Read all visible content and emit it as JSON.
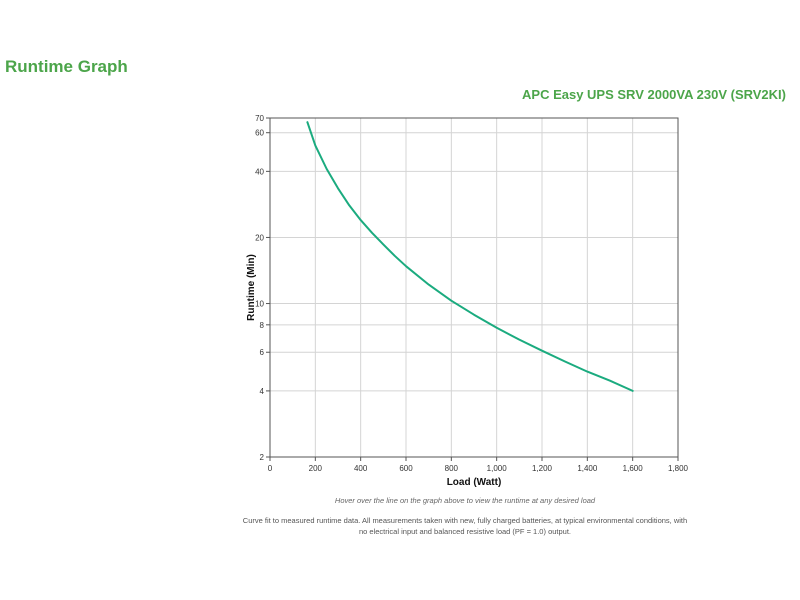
{
  "page": {
    "title": "Runtime Graph",
    "product": "APC Easy UPS SRV 2000VA 230V (SRV2KI)",
    "hint": "Hover over the line on the graph above to view the runtime at any desired load",
    "footnote": "Curve fit to measured runtime data. All measurements taken with new, fully charged batteries, at typical environmental conditions, with no electrical input and balanced resistive load (PF = 1.0) output."
  },
  "chart_data": {
    "type": "line",
    "title": "",
    "xlabel": "Load (Watt)",
    "ylabel": "Runtime (Min)",
    "xlim": [
      0,
      1800
    ],
    "ylim": [
      2,
      70
    ],
    "yscale": "log",
    "grid": true,
    "x_ticks": [
      0,
      200,
      400,
      600,
      800,
      1000,
      1200,
      1400,
      1600,
      1800
    ],
    "x_tick_labels": [
      "0",
      "200",
      "400",
      "600",
      "800",
      "1,000",
      "1,200",
      "1,400",
      "1,600",
      "1,800"
    ],
    "y_ticks": [
      2,
      4,
      6,
      8,
      10,
      20,
      40,
      60,
      70
    ],
    "y_tick_labels": [
      "2",
      "4",
      "6",
      "8",
      "10",
      "20",
      "40",
      "60",
      "70"
    ],
    "series_color": "#1bab7f",
    "series": [
      {
        "x": [
          165,
          200,
          250,
          300,
          350,
          400,
          450,
          500,
          550,
          600,
          700,
          800,
          900,
          1000,
          1100,
          1200,
          1300,
          1400,
          1500,
          1600
        ],
        "y": [
          67,
          52.5,
          41,
          33.5,
          28,
          24,
          21,
          18.6,
          16.5,
          14.8,
          12.2,
          10.3,
          8.9,
          7.75,
          6.85,
          6.1,
          5.45,
          4.9,
          4.45,
          4.0
        ]
      }
    ]
  }
}
